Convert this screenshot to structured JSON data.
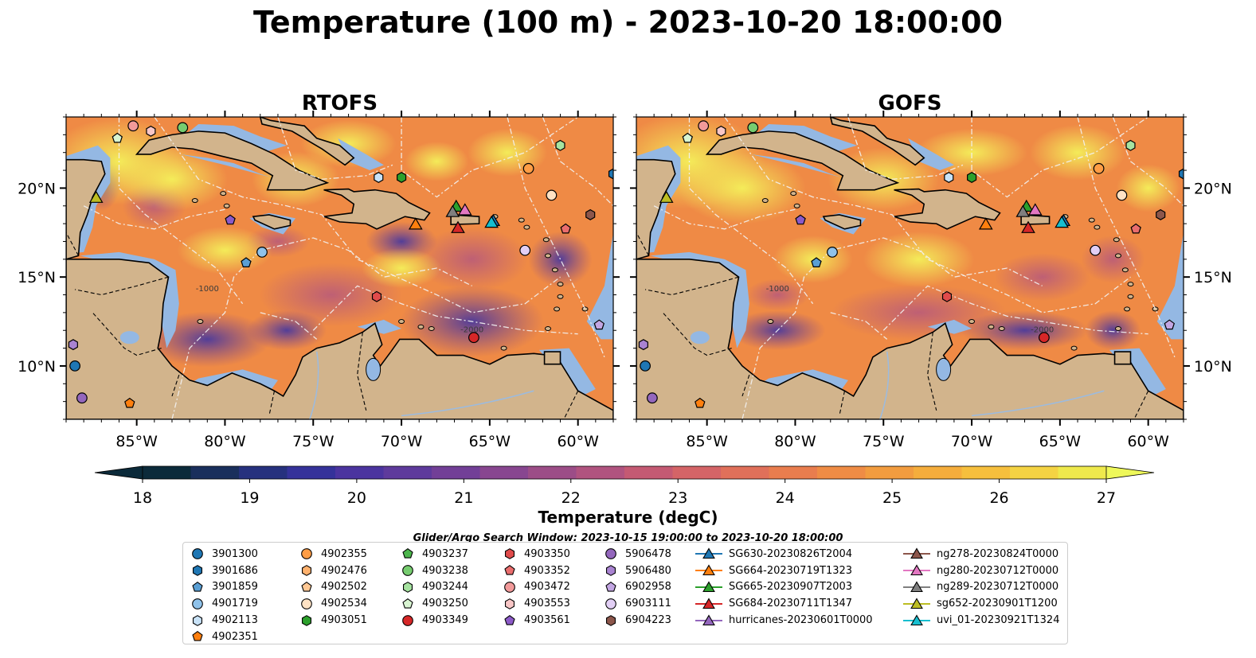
{
  "figure": {
    "title": "Temperature (100 m) - 2023-10-20 18:00:00",
    "panels": [
      {
        "title": "RTOFS"
      },
      {
        "title": "GOFS"
      }
    ],
    "lon_ticks": [
      "85°W",
      "80°W",
      "75°W",
      "70°W",
      "65°W",
      "60°W"
    ],
    "lat_ticks": [
      "20°N",
      "15°N",
      "10°N"
    ],
    "extent": {
      "lon": [
        -89,
        -58
      ],
      "lat": [
        7,
        24
      ]
    },
    "isobath_labels": [
      "-1000",
      "-2000"
    ]
  },
  "colorbar": {
    "label": "Temperature (degC)",
    "ticks": [
      "18",
      "19",
      "20",
      "21",
      "22",
      "23",
      "24",
      "25",
      "26",
      "27"
    ],
    "min": 18,
    "max": 27,
    "extend": "both",
    "colors": [
      "#0b2a3a",
      "#1a2f5c",
      "#26317e",
      "#35329a",
      "#4b349f",
      "#5e3a9c",
      "#723f97",
      "#884690",
      "#9c4d87",
      "#b0537f",
      "#c45a73",
      "#d46467",
      "#e0705a",
      "#e97d4e",
      "#ef8c45",
      "#f29c3f",
      "#f5ad3c",
      "#f6bf3d",
      "#f4d343",
      "#eee94c"
    ]
  },
  "search_window": "Glider/Argo Search Window: 2023-10-15 19:00:00 to 2023-10-20 18:00:00",
  "legend": [
    {
      "label": "3901300",
      "marker": "circle",
      "color": "#1f77b4"
    },
    {
      "label": "3901686",
      "marker": "hexagon",
      "color": "#1f77b4"
    },
    {
      "label": "3901859",
      "marker": "pentagon",
      "color": "#5a9fd4"
    },
    {
      "label": "4901719",
      "marker": "circle",
      "color": "#8fc2ea"
    },
    {
      "label": "4902113",
      "marker": "hexagon",
      "color": "#c8e2f7"
    },
    {
      "label": "4902351",
      "marker": "pentagon",
      "color": "#ff7f0e"
    },
    {
      "label": "4902355",
      "marker": "circle",
      "color": "#ff9d45"
    },
    {
      "label": "4902476",
      "marker": "hexagon",
      "color": "#ffb26e"
    },
    {
      "label": "4902502",
      "marker": "pentagon",
      "color": "#ffc894"
    },
    {
      "label": "4902534",
      "marker": "circle",
      "color": "#ffe2c4"
    },
    {
      "label": "4903051",
      "marker": "hexagon",
      "color": "#2ca02c"
    },
    {
      "label": "4903237",
      "marker": "pentagon",
      "color": "#4cb64c"
    },
    {
      "label": "4903238",
      "marker": "circle",
      "color": "#76cc6f"
    },
    {
      "label": "4903244",
      "marker": "hexagon",
      "color": "#a6e3a0"
    },
    {
      "label": "4903250",
      "marker": "pentagon",
      "color": "#d9f5d2"
    },
    {
      "label": "4903349",
      "marker": "circle",
      "color": "#d62728"
    },
    {
      "label": "4903350",
      "marker": "hexagon",
      "color": "#e04b4b"
    },
    {
      "label": "4903352",
      "marker": "pentagon",
      "color": "#ea6d6d"
    },
    {
      "label": "4903472",
      "marker": "circle",
      "color": "#f29a9a"
    },
    {
      "label": "4903553",
      "marker": "hexagon",
      "color": "#f8c6c6"
    },
    {
      "label": "4903561",
      "marker": "pentagon",
      "color": "#8c5ac8"
    },
    {
      "label": "5906478",
      "marker": "circle",
      "color": "#9467bd"
    },
    {
      "label": "5906480",
      "marker": "hexagon",
      "color": "#a983d1"
    },
    {
      "label": "6902958",
      "marker": "pentagon",
      "color": "#c3a6e3"
    },
    {
      "label": "6903111",
      "marker": "circle",
      "color": "#e2cff5"
    },
    {
      "label": "6904223",
      "marker": "hexagon",
      "color": "#8c564b"
    },
    {
      "label": "SG630-20230826T2004",
      "marker": "triangle-line",
      "color": "#1f77b4"
    },
    {
      "label": "SG664-20230719T1323",
      "marker": "triangle-line",
      "color": "#ff7f0e"
    },
    {
      "label": "SG665-20230907T2003",
      "marker": "triangle-line",
      "color": "#2ca02c"
    },
    {
      "label": "SG684-20230711T1347",
      "marker": "triangle-line",
      "color": "#d62728"
    },
    {
      "label": "hurricanes-20230601T0000",
      "marker": "triangle-line",
      "color": "#9467bd"
    },
    {
      "label": "ng278-20230824T0000",
      "marker": "triangle-line",
      "color": "#8c564b"
    },
    {
      "label": "ng280-20230712T0000",
      "marker": "triangle-line",
      "color": "#e377c2"
    },
    {
      "label": "ng289-20230712T0000",
      "marker": "triangle-line",
      "color": "#7f7f7f"
    },
    {
      "label": "sg652-20230901T1200",
      "marker": "triangle-line",
      "color": "#bcbd22"
    },
    {
      "label": "uvi_01-20230921T1324",
      "marker": "triangle-line",
      "color": "#17becf"
    }
  ],
  "stations": [
    {
      "lon": -88.5,
      "lat": 10.0,
      "marker": "circle",
      "color": "#1f77b4"
    },
    {
      "lon": -58.0,
      "lat": 20.8,
      "marker": "hexagon",
      "color": "#1f77b4"
    },
    {
      "lon": -78.8,
      "lat": 15.8,
      "marker": "pentagon",
      "color": "#5a9fd4"
    },
    {
      "lon": -77.9,
      "lat": 16.4,
      "marker": "circle",
      "color": "#8fc2ea"
    },
    {
      "lon": -71.3,
      "lat": 20.6,
      "marker": "hexagon",
      "color": "#c8e2f7"
    },
    {
      "lon": -85.4,
      "lat": 7.9,
      "marker": "pentagon",
      "color": "#ff7f0e"
    },
    {
      "lon": -62.8,
      "lat": 21.1,
      "marker": "circle",
      "color": "#ff9d45"
    },
    {
      "lon": -61.5,
      "lat": 19.6,
      "marker": "circle",
      "color": "#ffe2c4"
    },
    {
      "lon": -70.0,
      "lat": 20.6,
      "marker": "hexagon",
      "color": "#2ca02c"
    },
    {
      "lon": -82.4,
      "lat": 23.4,
      "marker": "circle",
      "color": "#76cc6f"
    },
    {
      "lon": -61.0,
      "lat": 22.4,
      "marker": "hexagon",
      "color": "#a6e3a0"
    },
    {
      "lon": -86.1,
      "lat": 22.8,
      "marker": "pentagon",
      "color": "#d9f5d2"
    },
    {
      "lon": -65.9,
      "lat": 11.6,
      "marker": "circle",
      "color": "#d62728"
    },
    {
      "lon": -71.4,
      "lat": 13.9,
      "marker": "hexagon",
      "color": "#e04b4b"
    },
    {
      "lon": -60.7,
      "lat": 17.7,
      "marker": "pentagon",
      "color": "#ea6d6d"
    },
    {
      "lon": -85.2,
      "lat": 23.5,
      "marker": "circle",
      "color": "#f29a9a"
    },
    {
      "lon": -84.2,
      "lat": 23.2,
      "marker": "hexagon",
      "color": "#f8c6c6"
    },
    {
      "lon": -79.7,
      "lat": 18.2,
      "marker": "pentagon",
      "color": "#8c5ac8"
    },
    {
      "lon": -88.1,
      "lat": 8.2,
      "marker": "circle",
      "color": "#9467bd"
    },
    {
      "lon": -88.6,
      "lat": 11.2,
      "marker": "hexagon",
      "color": "#a983d1"
    },
    {
      "lon": -58.8,
      "lat": 12.3,
      "marker": "pentagon",
      "color": "#c3a6e3"
    },
    {
      "lon": -63.0,
      "lat": 16.5,
      "marker": "circle",
      "color": "#e2cff5"
    },
    {
      "lon": -59.3,
      "lat": 18.5,
      "marker": "hexagon",
      "color": "#8c564b"
    },
    {
      "lon": -64.8,
      "lat": 18.1,
      "marker": "triangle",
      "color": "#1f77b4"
    },
    {
      "lon": -69.2,
      "lat": 17.9,
      "marker": "triangle",
      "color": "#ff7f0e"
    },
    {
      "lon": -66.9,
      "lat": 18.9,
      "marker": "triangle",
      "color": "#2ca02c"
    },
    {
      "lon": -66.8,
      "lat": 17.7,
      "marker": "triangle",
      "color": "#d62728"
    },
    {
      "lon": -66.4,
      "lat": 18.7,
      "marker": "triangle",
      "color": "#e377c2"
    },
    {
      "lon": -67.1,
      "lat": 18.6,
      "marker": "triangle",
      "color": "#7f7f7f"
    },
    {
      "lon": -87.3,
      "lat": 19.4,
      "marker": "triangle",
      "color": "#bcbd22"
    },
    {
      "lon": -64.9,
      "lat": 18.0,
      "marker": "triangle",
      "color": "#17becf"
    }
  ]
}
